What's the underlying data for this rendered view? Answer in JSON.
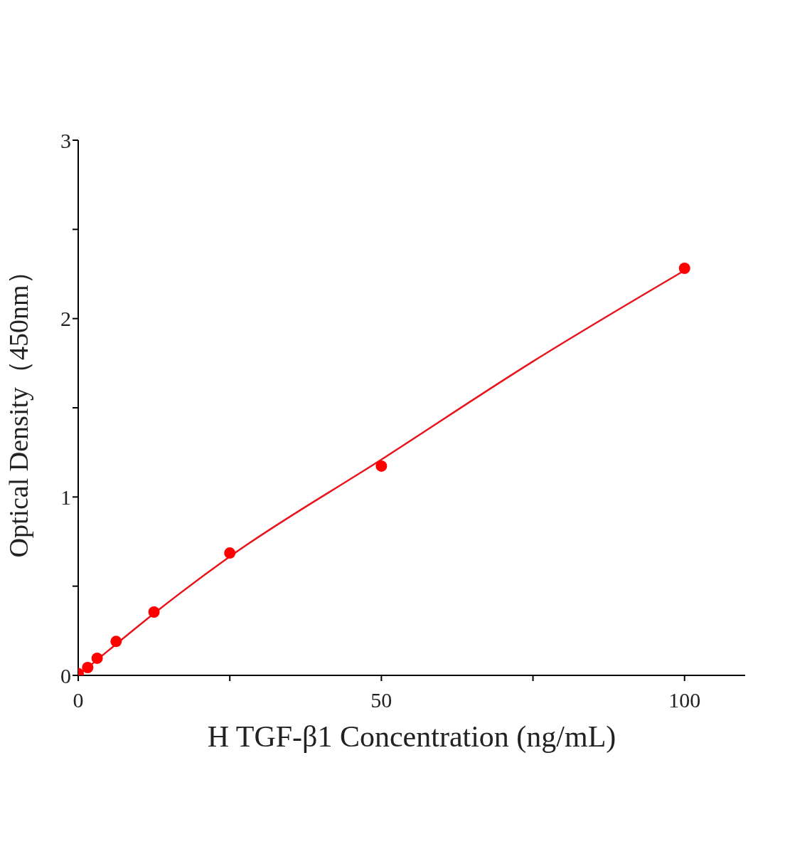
{
  "chart_data": {
    "type": "scatter",
    "xlabel": "H TGF-β1 Concentration (ng/mL)",
    "ylabel": "Optical Density（450nm）",
    "xlim": [
      0,
      110
    ],
    "ylim": [
      0,
      3
    ],
    "xticks": [
      0,
      {
        "value": 25,
        "label": null
      },
      50,
      {
        "value": 75,
        "label": null
      },
      100
    ],
    "yticks": [
      0,
      {
        "value": 0.5,
        "label": null
      },
      1,
      {
        "value": 1.5,
        "label": null
      },
      2,
      {
        "value": 2.5,
        "label": null
      },
      3
    ],
    "series": [
      {
        "color": "#ff0000",
        "marker": "circle",
        "x": [
          0,
          1.5625,
          3.125,
          6.25,
          12.5,
          25,
          50,
          100
        ],
        "values": [
          0.01,
          0.044,
          0.096,
          0.19,
          0.355,
          0.686,
          1.173,
          2.282
        ]
      },
      {
        "type": "line",
        "color": "#e8141b",
        "marker": "none",
        "line_style": "solid",
        "x": [
          0,
          5,
          12.5,
          25,
          50,
          75,
          100
        ],
        "values": [
          0,
          0.14,
          0.347,
          0.666,
          1.21,
          1.76,
          2.27
        ]
      }
    ]
  }
}
